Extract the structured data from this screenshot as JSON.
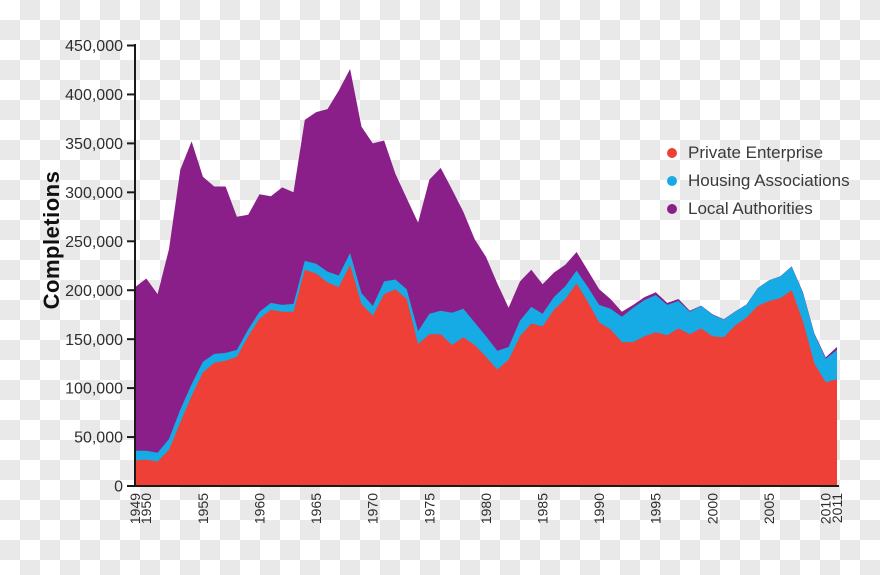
{
  "background": {
    "checker_light": "#ffffff",
    "checker_dark": "#e9e9e9"
  },
  "chart_data": {
    "type": "area",
    "stacked": true,
    "ylabel": "Completions",
    "xlabel": "",
    "ylim": [
      0,
      450000
    ],
    "grid": false,
    "legend_position": "upper right",
    "y_ticks": [
      0,
      50000,
      100000,
      150000,
      200000,
      250000,
      300000,
      350000,
      400000,
      450000
    ],
    "y_tick_labels": [
      "0",
      "50,000",
      "100,000",
      "150,000",
      "200,000",
      "250,000",
      "300,000",
      "350,000",
      "400,000",
      "450,000"
    ],
    "x_tick_years": [
      1949,
      1950,
      1955,
      1960,
      1965,
      1970,
      1975,
      1980,
      1985,
      1990,
      1995,
      2000,
      2005,
      2010,
      2011
    ],
    "x": [
      1949,
      1950,
      1951,
      1952,
      1953,
      1954,
      1955,
      1956,
      1957,
      1958,
      1959,
      1960,
      1961,
      1962,
      1963,
      1964,
      1965,
      1966,
      1967,
      1968,
      1969,
      1970,
      1971,
      1972,
      1973,
      1974,
      1975,
      1976,
      1977,
      1978,
      1979,
      1980,
      1981,
      1982,
      1983,
      1984,
      1985,
      1986,
      1987,
      1988,
      1989,
      1990,
      1991,
      1992,
      1993,
      1994,
      1995,
      1996,
      1997,
      1998,
      1999,
      2000,
      2001,
      2002,
      2003,
      2004,
      2005,
      2006,
      2007,
      2008,
      2009,
      2010,
      2011
    ],
    "series": [
      {
        "name": "Private Enterprise",
        "color": "#ee4036",
        "values": [
          26000,
          27000,
          25000,
          37000,
          65000,
          92000,
          116000,
          126000,
          128000,
          132000,
          153000,
          171000,
          180000,
          178000,
          178000,
          221000,
          217000,
          208000,
          203000,
          226000,
          186000,
          174000,
          196000,
          201000,
          191000,
          145000,
          155000,
          155000,
          144000,
          152000,
          144000,
          132000,
          119000,
          129000,
          153000,
          166000,
          163000,
          180000,
          191000,
          207000,
          188000,
          167000,
          160000,
          147000,
          147000,
          153000,
          157000,
          154000,
          161000,
          155000,
          161000,
          153000,
          152000,
          164000,
          172000,
          184000,
          189000,
          192000,
          200000,
          168000,
          125000,
          106000,
          109000
        ]
      },
      {
        "name": "Housing Associations",
        "color": "#16abe4",
        "values": [
          10000,
          9000,
          9000,
          11000,
          13000,
          12000,
          11000,
          9000,
          8000,
          7000,
          7000,
          7000,
          7000,
          7000,
          8000,
          9000,
          10000,
          11000,
          12000,
          12000,
          11000,
          10000,
          13000,
          10000,
          10000,
          13000,
          21000,
          24000,
          33000,
          29000,
          23000,
          21000,
          19000,
          13000,
          16000,
          17000,
          13000,
          13000,
          13000,
          13000,
          15000,
          18000,
          21000,
          26000,
          35000,
          37000,
          38000,
          31000,
          28000,
          23000,
          23000,
          22000,
          18000,
          14000,
          13000,
          18000,
          21000,
          22000,
          24000,
          29000,
          30000,
          24000,
          30000
        ]
      },
      {
        "name": "Local Authorities",
        "color": "#8a1f8a",
        "values": [
          167000,
          176000,
          162000,
          194000,
          245000,
          248000,
          189000,
          171000,
          170000,
          136000,
          117000,
          120000,
          109000,
          120000,
          114000,
          144000,
          155000,
          166000,
          189000,
          188000,
          170000,
          166000,
          144000,
          108000,
          93000,
          111000,
          137000,
          146000,
          126000,
          99000,
          85000,
          81000,
          69000,
          40000,
          40000,
          38000,
          30000,
          25000,
          22000,
          19000,
          17000,
          16000,
          10000,
          5000,
          3000,
          3000,
          3000,
          2000,
          2000,
          1000,
          300,
          400,
          400,
          300,
          300,
          200,
          200,
          300,
          300,
          800,
          800,
          1400,
          3100
        ]
      }
    ],
    "legend": [
      {
        "label": "Private Enterprise",
        "color": "#ee4036"
      },
      {
        "label": "Housing Associations",
        "color": "#16abe4"
      },
      {
        "label": "Local Authorities",
        "color": "#8a1f8a"
      }
    ]
  }
}
